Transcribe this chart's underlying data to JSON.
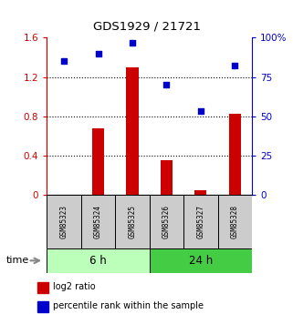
{
  "title": "GDS1929 / 21721",
  "samples": [
    "GSM85323",
    "GSM85324",
    "GSM85325",
    "GSM85326",
    "GSM85327",
    "GSM85328"
  ],
  "log2_ratio": [
    0.0,
    0.68,
    1.3,
    0.35,
    0.05,
    0.82
  ],
  "percentile_rank": [
    85,
    90,
    97,
    70,
    53,
    82
  ],
  "bar_color": "#cc0000",
  "dot_color": "#0000cc",
  "left_ylim": [
    0,
    1.6
  ],
  "right_ylim": [
    0,
    100
  ],
  "left_yticks": [
    0,
    0.4,
    0.8,
    1.2,
    1.6
  ],
  "right_yticks": [
    0,
    25,
    50,
    75,
    100
  ],
  "left_ytick_labels": [
    "0",
    "0.4",
    "0.8",
    "1.2",
    "1.6"
  ],
  "right_ytick_labels": [
    "0",
    "25",
    "50",
    "75",
    "100%"
  ],
  "group_labels": [
    "6 h",
    "24 h"
  ],
  "group_ranges": [
    [
      0,
      3
    ],
    [
      3,
      6
    ]
  ],
  "group_color_light": "#bbffbb",
  "group_color_dark": "#44cc44",
  "time_label": "time",
  "legend_entries": [
    "log2 ratio",
    "percentile rank within the sample"
  ],
  "bar_width": 0.35,
  "sample_box_color": "#cccccc"
}
